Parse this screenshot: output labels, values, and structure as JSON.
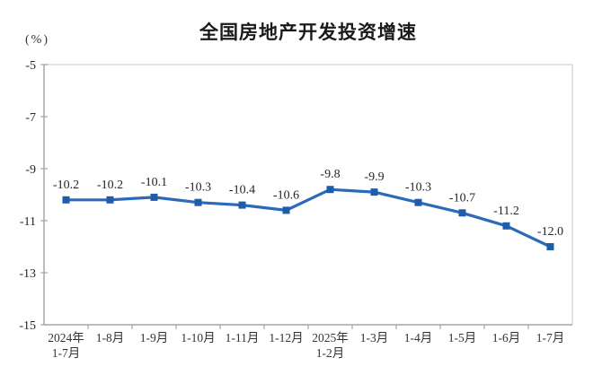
{
  "page": {
    "background": "#ffffff"
  },
  "chart_data": {
    "type": "line",
    "title": "全国房地产开发投资增速",
    "unit_label": "(%)",
    "categories": [
      "2024年\n1-7月",
      "1-8月",
      "1-9月",
      "1-10月",
      "1-11月",
      "1-12月",
      "2025年\n1-2月",
      "1-3月",
      "1-4月",
      "1-5月",
      "1-6月",
      "1-7月"
    ],
    "values": [
      -10.2,
      -10.2,
      -10.1,
      -10.3,
      -10.4,
      -10.6,
      -9.8,
      -9.9,
      -10.3,
      -10.7,
      -11.2,
      -12.0
    ],
    "data_labels": [
      "-10.2",
      "-10.2",
      "-10.1",
      "-10.3",
      "-10.4",
      "-10.6",
      "-9.8",
      "-9.9",
      "-10.3",
      "-10.7",
      "-11.2",
      "-12.0"
    ],
    "ylim": [
      -15,
      -5
    ],
    "yticks": [
      -5,
      -7,
      -9,
      -11,
      -13,
      -15
    ],
    "grid": false,
    "legend": "none",
    "marker": "square",
    "colors": {
      "line": "#2B6AB9",
      "marker": "#1F5CA9",
      "axis": "#A6A6A6",
      "plot_border": "#D9D9D9",
      "tick_text": "#262626",
      "xlabel_text": "#333333",
      "data_label_text": "#262626"
    }
  }
}
